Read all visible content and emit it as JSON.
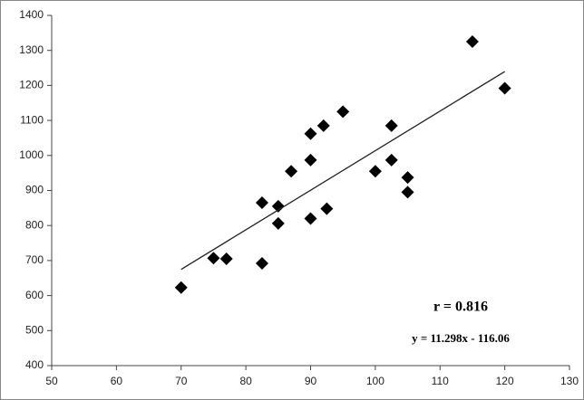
{
  "chart_data": {
    "type": "scatter",
    "x": [
      70,
      75,
      77,
      82.5,
      82.5,
      85,
      85,
      87,
      90,
      90,
      90,
      92,
      92.5,
      95,
      100,
      102.5,
      102.5,
      105,
      105,
      115,
      120
    ],
    "values": [
      623,
      707,
      705,
      865,
      692,
      855,
      806,
      955,
      1062,
      987,
      820,
      1085,
      848,
      1125,
      955,
      1085,
      987,
      937,
      895,
      1325,
      1192
    ],
    "color": "#000000",
    "xlim": [
      50,
      130
    ],
    "xticks": [
      50,
      60,
      70,
      80,
      90,
      100,
      110,
      120,
      130
    ],
    "ylim": [
      400,
      1400
    ],
    "yticks": [
      400,
      500,
      600,
      700,
      800,
      900,
      1000,
      1100,
      1200,
      1300,
      1400
    ],
    "grid": false,
    "trendline": {
      "x": [
        70,
        120
      ],
      "y": [
        674.8,
        1239.7
      ]
    },
    "annotations": [
      "r = 0.816",
      "y = 11.298x - 116.06"
    ]
  }
}
